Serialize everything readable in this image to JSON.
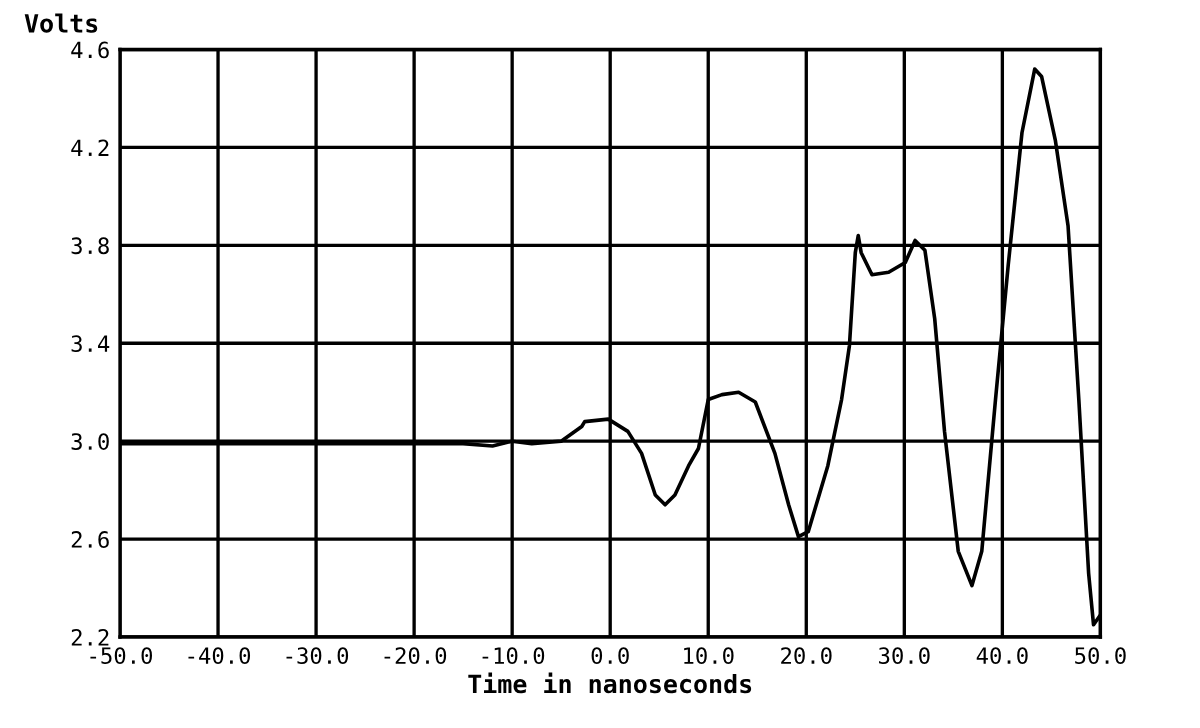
{
  "chart_data": {
    "type": "line",
    "xlabel": "Time in nanoseconds",
    "ylabel": "Volts",
    "series": [
      {
        "color": "#000000",
        "x": [
          -50,
          -45,
          -40,
          -35,
          -30,
          -25,
          -20,
          -15,
          -12,
          -10,
          -8,
          -5,
          -2.9,
          -2.6,
          -0.2,
          1.8,
          3.2,
          4.6,
          5.6,
          6.6,
          8.0,
          9.0,
          10.0,
          11.4,
          13.1,
          14.8,
          16.8,
          18.2,
          19.2,
          20.2,
          22.2,
          23.6,
          24.4,
          25.0,
          25.3,
          25.6,
          26.7,
          28.4,
          30.1,
          31.1,
          32.1,
          33.1,
          34.1,
          35.5,
          36.9,
          37.9,
          39.3,
          40.6,
          42.0,
          43.3,
          44.0,
          45.4,
          46.7,
          47.8,
          48.8,
          49.3,
          50.0
        ],
        "values": [
          2.99,
          2.99,
          2.99,
          2.99,
          2.99,
          2.99,
          2.99,
          2.99,
          2.98,
          3.0,
          2.99,
          3.0,
          3.06,
          3.08,
          3.09,
          3.04,
          2.95,
          2.78,
          2.74,
          2.78,
          2.9,
          2.97,
          3.17,
          3.19,
          3.2,
          3.16,
          2.95,
          2.74,
          2.61,
          2.63,
          2.9,
          3.17,
          3.39,
          3.77,
          3.84,
          3.77,
          3.68,
          3.69,
          3.73,
          3.82,
          3.78,
          3.5,
          3.04,
          2.55,
          2.41,
          2.55,
          3.17,
          3.72,
          4.26,
          4.52,
          4.49,
          4.23,
          3.88,
          3.17,
          2.46,
          2.25,
          2.29
        ]
      }
    ],
    "xlim": [
      -50,
      50
    ],
    "ylim": [
      2.2,
      4.6
    ],
    "xticks": [
      {
        "value": -50,
        "label": "-50.0"
      },
      {
        "value": -40,
        "label": "-40.0"
      },
      {
        "value": -30,
        "label": "-30.0"
      },
      {
        "value": -20,
        "label": "-20.0"
      },
      {
        "value": -10,
        "label": "-10.0"
      },
      {
        "value": 0,
        "label": "0.0"
      },
      {
        "value": 10,
        "label": "10.0"
      },
      {
        "value": 20,
        "label": "20.0"
      },
      {
        "value": 30,
        "label": "30.0"
      },
      {
        "value": 40,
        "label": "40.0"
      },
      {
        "value": 50,
        "label": "50.0"
      }
    ],
    "yticks": [
      {
        "value": 2.2,
        "label": "2.2"
      },
      {
        "value": 2.6,
        "label": "2.6"
      },
      {
        "value": 3.0,
        "label": "3.0"
      },
      {
        "value": 3.4,
        "label": "3.4"
      },
      {
        "value": 3.8,
        "label": "3.8"
      },
      {
        "value": 4.2,
        "label": "4.2"
      },
      {
        "value": 4.6,
        "label": "4.6"
      }
    ],
    "grid": true
  }
}
